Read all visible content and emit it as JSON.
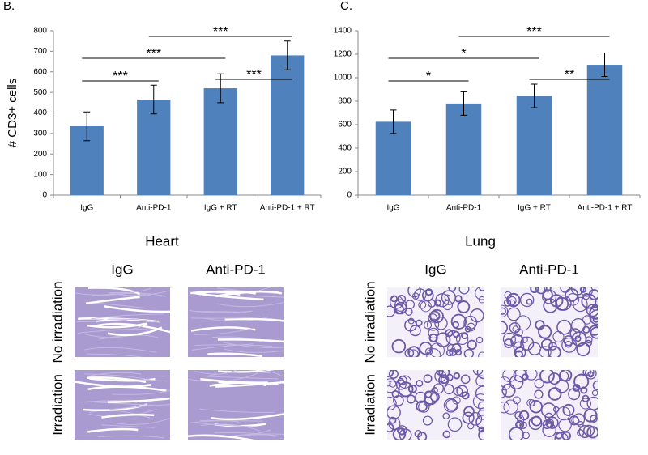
{
  "chart_data": [
    {
      "type": "bar",
      "panel_label": "B.",
      "ylabel": "# CD3+ cells",
      "categories": [
        "IgG",
        "Anti-PD-1",
        "IgG + RT",
        "Anti-PD-1 + RT"
      ],
      "values": [
        335,
        465,
        520,
        680
      ],
      "errors": [
        70,
        70,
        70,
        70
      ],
      "color": "#4f81bd",
      "ylim": [
        0,
        800
      ],
      "yticks": [
        0,
        100,
        200,
        300,
        400,
        500,
        600,
        700,
        800
      ],
      "annotations": [
        {
          "label": "***",
          "between": [
            "IgG",
            "Anti-PD-1"
          ]
        },
        {
          "label": "***",
          "between": [
            "IgG",
            "IgG + RT"
          ]
        },
        {
          "label": "***",
          "between": [
            "Anti-PD-1",
            "Anti-PD-1 + RT"
          ]
        },
        {
          "label": "***",
          "between": [
            "IgG + RT",
            "Anti-PD-1 + RT"
          ]
        }
      ]
    },
    {
      "type": "bar",
      "panel_label": "C.",
      "categories": [
        "IgG",
        "Anti-PD-1",
        "IgG + RT",
        "Anti-PD-1 + RT"
      ],
      "values": [
        625,
        780,
        845,
        1110
      ],
      "errors": [
        100,
        100,
        100,
        100
      ],
      "color": "#4f81bd",
      "ylim": [
        0,
        1400
      ],
      "yticks": [
        0,
        200,
        400,
        600,
        800,
        1000,
        1200,
        1400
      ],
      "annotations": [
        {
          "label": "*",
          "between": [
            "IgG",
            "Anti-PD-1"
          ]
        },
        {
          "label": "*",
          "between": [
            "IgG",
            "IgG + RT"
          ]
        },
        {
          "label": "***",
          "between": [
            "Anti-PD-1",
            "Anti-PD-1 + RT"
          ]
        },
        {
          "label": "**",
          "between": [
            "IgG + RT",
            "Anti-PD-1 + RT"
          ]
        }
      ]
    }
  ],
  "histology": [
    {
      "title": "Heart",
      "columns": [
        "IgG",
        "Anti-PD-1"
      ],
      "rows": [
        "No irradiation",
        "Irradiation"
      ]
    },
    {
      "title": "Lung",
      "columns": [
        "IgG",
        "Anti-PD-1"
      ],
      "rows": [
        "No irradiation",
        "Irradiation"
      ]
    }
  ]
}
